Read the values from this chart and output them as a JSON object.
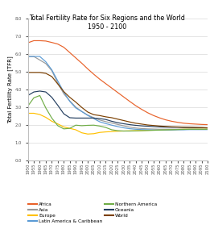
{
  "title": "Total Fertility Rate for Six Regions and the World\n1950 - 2100",
  "ylabel": "Total Fertility Rate [TFR]",
  "ylim": [
    0.0,
    8.0
  ],
  "yticks": [
    0.0,
    1.0,
    2.0,
    3.0,
    4.0,
    5.0,
    6.0,
    7.0,
    8.0
  ],
  "years": [
    1950,
    1955,
    1960,
    1965,
    1970,
    1975,
    1980,
    1985,
    1990,
    1995,
    2000,
    2005,
    2010,
    2015,
    2020,
    2025,
    2030,
    2035,
    2040,
    2045,
    2050,
    2055,
    2060,
    2065,
    2070,
    2075,
    2080,
    2085,
    2090,
    2095,
    2100
  ],
  "series": {
    "Africa": {
      "color": "#E8622A",
      "values": [
        6.62,
        6.74,
        6.74,
        6.72,
        6.64,
        6.55,
        6.37,
        6.07,
        5.77,
        5.47,
        5.15,
        4.85,
        4.57,
        4.32,
        4.07,
        3.82,
        3.57,
        3.32,
        3.08,
        2.87,
        2.68,
        2.52,
        2.39,
        2.28,
        2.2,
        2.14,
        2.09,
        2.06,
        2.04,
        2.02,
        2.01
      ]
    },
    "Asia": {
      "color": "#999999",
      "values": [
        5.85,
        5.85,
        5.65,
        5.45,
        5.05,
        4.35,
        3.75,
        3.35,
        3.0,
        2.75,
        2.55,
        2.4,
        2.27,
        2.18,
        2.1,
        2.02,
        1.94,
        1.87,
        1.82,
        1.79,
        1.77,
        1.76,
        1.75,
        1.75,
        1.75,
        1.75,
        1.75,
        1.75,
        1.75,
        1.75,
        1.75
      ]
    },
    "Europe": {
      "color": "#FFC000",
      "values": [
        2.65,
        2.65,
        2.58,
        2.42,
        2.2,
        2.05,
        1.88,
        1.8,
        1.72,
        1.55,
        1.48,
        1.5,
        1.57,
        1.6,
        1.62,
        1.64,
        1.65,
        1.66,
        1.67,
        1.68,
        1.69,
        1.7,
        1.71,
        1.72,
        1.73,
        1.74,
        1.75,
        1.75,
        1.75,
        1.75,
        1.75
      ]
    },
    "Latin America & Caribbean": {
      "color": "#5B9BD5",
      "values": [
        5.85,
        5.85,
        5.85,
        5.55,
        5.1,
        4.47,
        3.85,
        3.32,
        2.95,
        2.75,
        2.53,
        2.35,
        2.17,
        2.07,
        1.98,
        1.9,
        1.83,
        1.78,
        1.75,
        1.73,
        1.72,
        1.71,
        1.71,
        1.71,
        1.71,
        1.72,
        1.72,
        1.73,
        1.73,
        1.73,
        1.73
      ]
    },
    "Northern America": {
      "color": "#70AD47",
      "values": [
        3.05,
        3.52,
        3.65,
        2.95,
        2.38,
        1.95,
        1.77,
        1.8,
        1.98,
        1.95,
        1.97,
        1.98,
        1.93,
        1.85,
        1.72,
        1.67,
        1.65,
        1.65,
        1.66,
        1.67,
        1.68,
        1.69,
        1.7,
        1.71,
        1.72,
        1.73,
        1.74,
        1.75,
        1.75,
        1.75,
        1.75
      ]
    },
    "Oceania": {
      "color": "#243F60",
      "values": [
        3.65,
        3.85,
        3.9,
        3.85,
        3.55,
        3.1,
        2.62,
        2.4,
        2.38,
        2.38,
        2.38,
        2.38,
        2.35,
        2.3,
        2.2,
        2.12,
        2.06,
        2.01,
        1.97,
        1.94,
        1.92,
        1.9,
        1.88,
        1.87,
        1.86,
        1.86,
        1.85,
        1.85,
        1.84,
        1.84,
        1.83
      ]
    },
    "World": {
      "color": "#7B3F00",
      "values": [
        4.95,
        4.95,
        4.95,
        4.9,
        4.72,
        4.3,
        3.87,
        3.55,
        3.28,
        2.98,
        2.72,
        2.57,
        2.52,
        2.45,
        2.4,
        2.32,
        2.24,
        2.16,
        2.09,
        2.04,
        1.99,
        1.96,
        1.93,
        1.91,
        1.89,
        1.88,
        1.87,
        1.86,
        1.85,
        1.84,
        1.83
      ]
    }
  },
  "legend_col1": [
    "Africa",
    "Europe",
    "Northern America",
    "World"
  ],
  "legend_col2": [
    "Asia",
    "Latin America & Caribbean",
    "Oceania"
  ],
  "background_color": "#FFFFFF",
  "grid_color": "#D9D9D9",
  "title_fontsize": 5.8,
  "label_fontsize": 5.0,
  "tick_fontsize": 3.8,
  "legend_fontsize": 4.2,
  "linewidth": 0.85
}
